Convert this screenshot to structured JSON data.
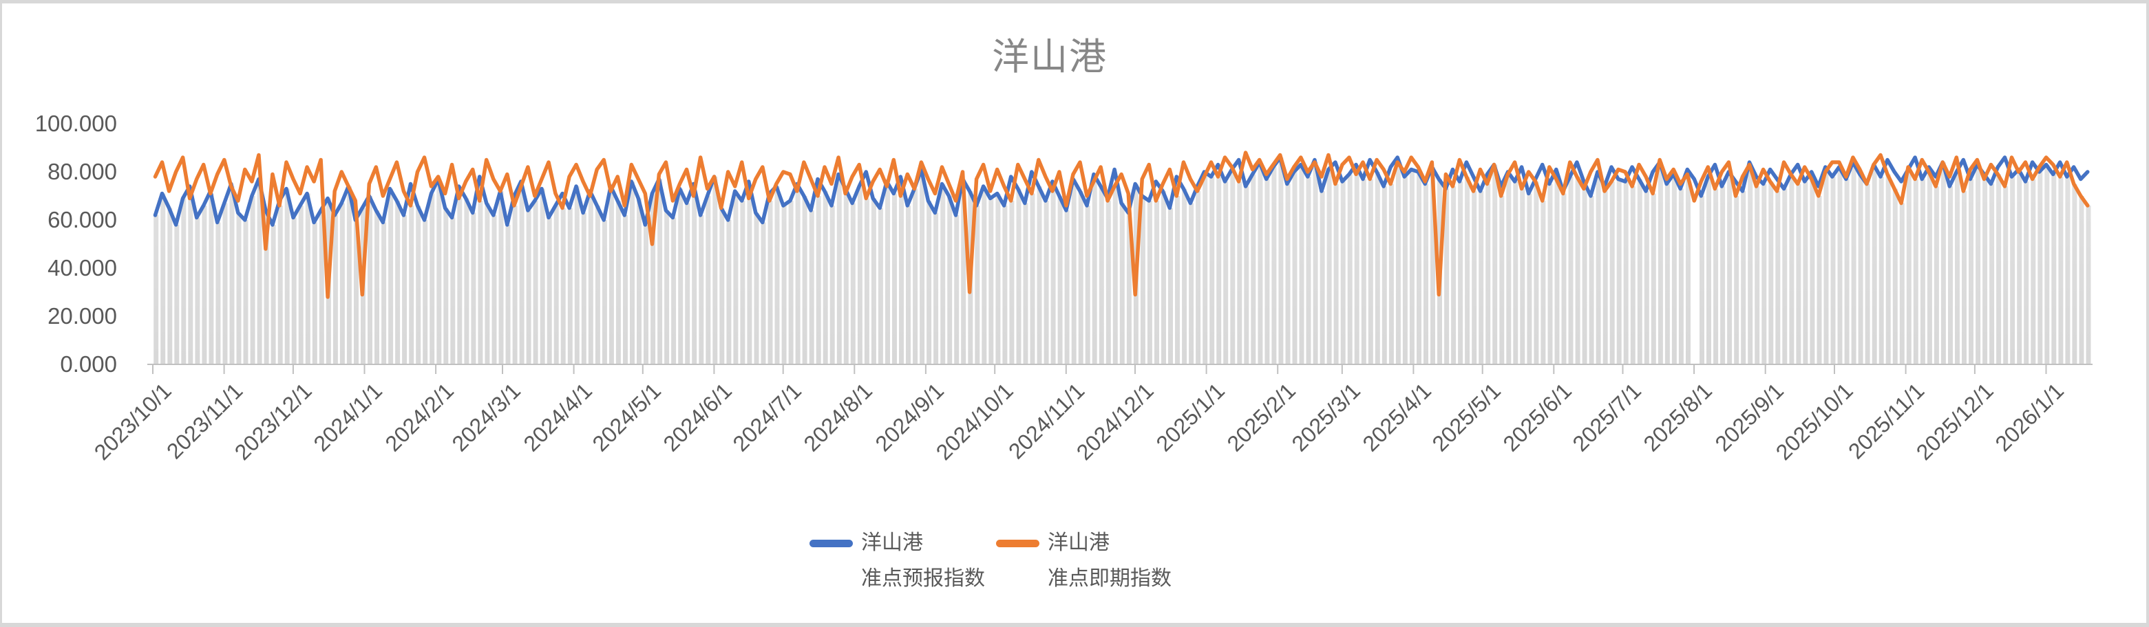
{
  "title": "洋山港",
  "colors": {
    "forecast_blue": "#4472C4",
    "spot_orange": "#ED7D31",
    "bar_gray_top": "#E3E3E3",
    "bar_gray_bottom": "#D8D8D8",
    "axis_gray": "#C0C0C0",
    "label_gray": "#595959",
    "title_gray": "#878787",
    "frame_gray": "#D8D8D8",
    "background": "#FFFFFF"
  },
  "legend": [
    {
      "line1": "洋山港",
      "line2": "准点预报指数",
      "color": "#4472C4"
    },
    {
      "line1": "洋山港",
      "line2": "准点即期指数",
      "color": "#ED7D31"
    }
  ],
  "chart_data": {
    "type": "line",
    "title": "洋山港",
    "ylim": [
      0,
      100
    ],
    "y_ticks": [
      100,
      80,
      60,
      40,
      20,
      0
    ],
    "y_tick_labels": [
      "100.000",
      "80.000",
      "60.000",
      "40.000",
      "20.000",
      "0.000"
    ],
    "x_start": "2023/10/1",
    "x_step_days": 3,
    "x_tick_labels": [
      "2023/10/1",
      "2023/11/1",
      "2023/12/1",
      "2024/1/1",
      "2024/2/1",
      "2024/3/1",
      "2024/4/1",
      "2024/5/1",
      "2024/6/1",
      "2024/7/1",
      "2024/8/1",
      "2024/9/1",
      "2024/10/1",
      "2024/11/1",
      "2024/12/1",
      "2025/1/1",
      "2025/2/1",
      "2025/3/1",
      "2025/4/1",
      "2025/5/1",
      "2025/6/1",
      "2025/7/1",
      "2025/8/1",
      "2025/9/1",
      "2025/10/1",
      "2025/11/1",
      "2025/12/1",
      "2026/1/1"
    ],
    "background_bars": "gray-columns-under-lines",
    "bar_gap_indices": [
      223
    ],
    "series": [
      {
        "name": "洋山港 准点预报指数",
        "color": "#4472C4",
        "values": [
          62,
          71,
          65,
          58,
          69,
          74,
          61,
          66,
          72,
          59,
          67,
          75,
          63,
          60,
          70,
          77,
          64,
          58,
          68,
          73,
          61,
          66,
          71,
          59,
          64,
          69,
          62,
          67,
          74,
          60,
          65,
          70,
          64,
          59,
          73,
          68,
          62,
          75,
          66,
          60,
          71,
          77,
          65,
          61,
          74,
          69,
          63,
          78,
          67,
          62,
          72,
          58,
          70,
          76,
          64,
          68,
          73,
          61,
          66,
          71,
          65,
          74,
          63,
          72,
          66,
          60,
          74,
          68,
          62,
          76,
          69,
          58,
          71,
          77,
          64,
          61,
          73,
          67,
          75,
          62,
          70,
          78,
          65,
          60,
          72,
          68,
          76,
          63,
          59,
          71,
          74,
          66,
          68,
          75,
          70,
          64,
          77,
          72,
          66,
          79,
          73,
          67,
          74,
          80,
          69,
          65,
          76,
          71,
          78,
          66,
          73,
          81,
          68,
          63,
          75,
          70,
          62,
          77,
          72,
          66,
          74,
          69,
          71,
          66,
          78,
          73,
          67,
          80,
          74,
          68,
          76,
          70,
          64,
          77,
          72,
          66,
          79,
          74,
          69,
          81,
          67,
          63,
          75,
          70,
          68,
          76,
          72,
          65,
          78,
          73,
          67,
          74,
          80,
          78,
          83,
          76,
          81,
          85,
          74,
          79,
          84,
          77,
          82,
          86,
          75,
          80,
          83,
          78,
          85,
          72,
          81,
          84,
          76,
          79,
          83,
          77,
          85,
          80,
          74,
          82,
          86,
          78,
          81,
          80,
          75,
          82,
          77,
          73,
          81,
          76,
          84,
          78,
          72,
          79,
          83,
          74,
          80,
          76,
          82,
          71,
          77,
          83,
          75,
          81,
          72,
          78,
          84,
          76,
          70,
          80,
          74,
          82,
          77,
          76,
          82,
          77,
          72,
          80,
          84,
          75,
          79,
          73,
          81,
          77,
          70,
          78,
          83,
          74,
          80,
          76,
          72,
          84,
          78,
          75,
          81,
          77,
          73,
          79,
          83,
          76,
          80,
          74,
          82,
          78,
          82,
          77,
          84,
          79,
          75,
          83,
          78,
          85,
          80,
          76,
          81,
          86,
          77,
          82,
          78,
          84,
          74,
          80,
          85,
          77,
          83,
          79,
          75,
          82,
          86,
          78,
          81,
          76,
          84,
          80,
          83,
          79,
          84,
          78,
          82,
          77,
          80
        ]
      },
      {
        "name": "洋山港 准点即期指数",
        "color": "#ED7D31",
        "values": [
          78,
          84,
          72,
          80,
          86,
          69,
          77,
          83,
          71,
          79,
          85,
          74,
          68,
          81,
          76,
          87,
          48,
          79,
          66,
          84,
          77,
          71,
          82,
          76,
          85,
          28,
          72,
          80,
          74,
          68,
          29,
          75,
          82,
          70,
          77,
          84,
          72,
          66,
          80,
          86,
          74,
          78,
          71,
          83,
          69,
          76,
          81,
          68,
          85,
          77,
          72,
          79,
          66,
          74,
          82,
          70,
          77,
          84,
          71,
          65,
          78,
          83,
          76,
          70,
          81,
          85,
          72,
          78,
          66,
          83,
          77,
          71,
          50,
          79,
          84,
          68,
          75,
          81,
          70,
          86,
          73,
          78,
          65,
          80,
          74,
          84,
          69,
          77,
          82,
          68,
          75,
          80,
          79,
          72,
          84,
          77,
          70,
          82,
          75,
          86,
          71,
          78,
          83,
          69,
          76,
          81,
          74,
          85,
          70,
          79,
          73,
          84,
          77,
          71,
          82,
          75,
          68,
          80,
          30,
          77,
          83,
          72,
          81,
          74,
          68,
          83,
          77,
          71,
          85,
          78,
          72,
          80,
          66,
          79,
          84,
          70,
          76,
          82,
          68,
          74,
          79,
          71,
          29,
          77,
          83,
          68,
          75,
          81,
          70,
          84,
          77,
          72,
          78,
          84,
          78,
          86,
          82,
          76,
          88,
          81,
          85,
          79,
          83,
          87,
          77,
          82,
          86,
          80,
          84,
          78,
          87,
          75,
          83,
          86,
          79,
          84,
          77,
          85,
          81,
          75,
          84,
          80,
          86,
          82,
          76,
          84,
          29,
          79,
          74,
          85,
          78,
          72,
          81,
          75,
          83,
          70,
          79,
          84,
          73,
          80,
          76,
          68,
          82,
          77,
          71,
          84,
          78,
          73,
          80,
          85,
          72,
          76,
          81,
          80,
          74,
          83,
          78,
          71,
          85,
          77,
          81,
          75,
          79,
          68,
          76,
          82,
          73,
          80,
          84,
          70,
          78,
          83,
          74,
          81,
          76,
          72,
          84,
          79,
          75,
          82,
          77,
          70,
          80,
          84,
          84,
          78,
          86,
          81,
          75,
          83,
          87,
          79,
          73,
          67,
          82,
          77,
          85,
          80,
          74,
          84,
          78,
          86,
          72,
          81,
          85,
          77,
          83,
          79,
          74,
          86,
          80,
          84,
          77,
          82,
          86,
          83,
          78,
          84,
          75,
          70,
          66
        ]
      }
    ]
  }
}
